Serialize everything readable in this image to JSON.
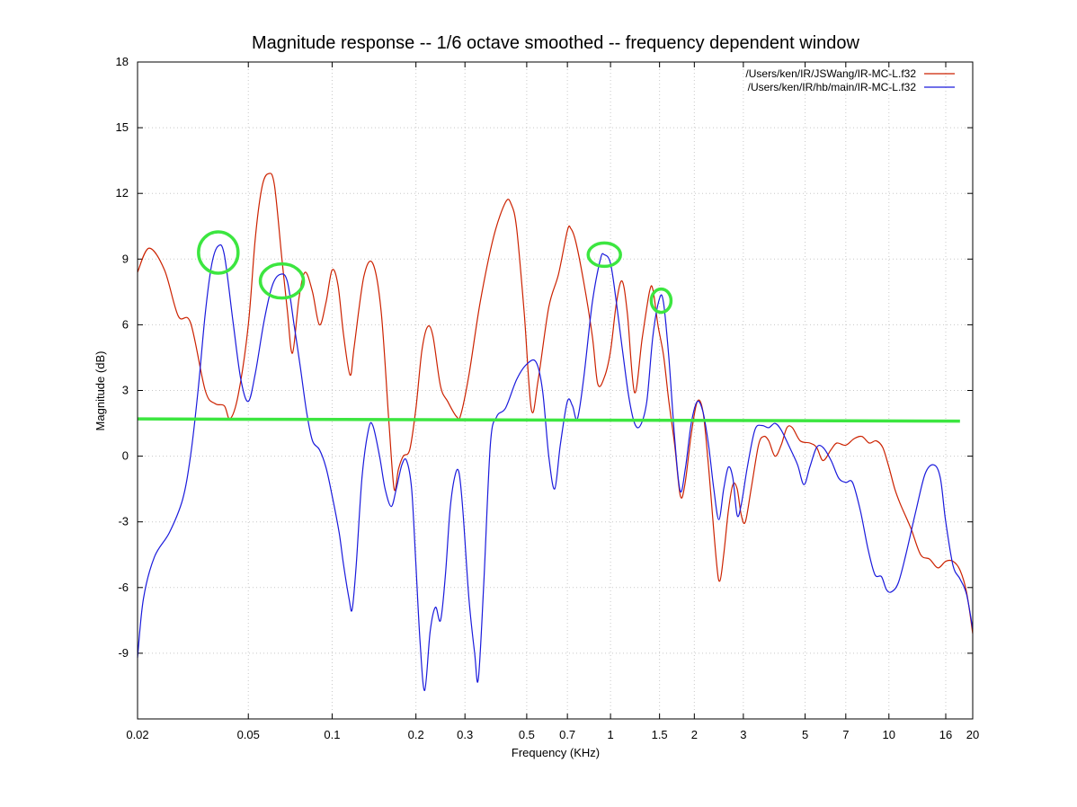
{
  "chart_data": {
    "type": "line",
    "title": "Magnitude response -- 1/6 octave smoothed -- frequency dependent window",
    "xlabel": "Frequency (KHz)",
    "ylabel": "Magnitude (dB)",
    "xscale": "log",
    "xlim": [
      0.02,
      20
    ],
    "ylim": [
      -12,
      18
    ],
    "x_ticks": [
      0.02,
      0.05,
      0.1,
      0.2,
      0.3,
      0.5,
      0.7,
      1,
      1.5,
      2,
      3,
      5,
      7,
      10,
      16,
      20
    ],
    "x_tick_labels": [
      "0.02",
      "0.05",
      "0.1",
      "0.2",
      "0.3",
      "0.5",
      "0.7",
      "1",
      "1.5",
      "2",
      "3",
      "5",
      "7",
      "10",
      "16",
      "20"
    ],
    "y_ticks": [
      -9,
      -6,
      -3,
      0,
      3,
      6,
      9,
      12,
      15,
      18
    ],
    "y_tick_labels": [
      "-9",
      "-6",
      "-3",
      "0",
      "3",
      "6",
      "9",
      "12",
      "15",
      "18"
    ],
    "grid": true,
    "legend_position": "top-right",
    "series": [
      {
        "name": "/Users/ken/IR/JSWang/IR-MC-L.f32",
        "color": "#cc2200",
        "points": [
          [
            0.02,
            8.4
          ],
          [
            0.022,
            9.5
          ],
          [
            0.025,
            8.5
          ],
          [
            0.028,
            6.4
          ],
          [
            0.031,
            6.1
          ],
          [
            0.035,
            3.0
          ],
          [
            0.038,
            2.4
          ],
          [
            0.041,
            2.3
          ],
          [
            0.043,
            1.7
          ],
          [
            0.046,
            2.8
          ],
          [
            0.05,
            6.0
          ],
          [
            0.053,
            10.0
          ],
          [
            0.056,
            12.3
          ],
          [
            0.059,
            12.9
          ],
          [
            0.062,
            12.4
          ],
          [
            0.066,
            9.0
          ],
          [
            0.069,
            6.7
          ],
          [
            0.072,
            4.7
          ],
          [
            0.076,
            7.2
          ],
          [
            0.08,
            8.4
          ],
          [
            0.085,
            7.5
          ],
          [
            0.09,
            6.0
          ],
          [
            0.095,
            7.0
          ],
          [
            0.1,
            8.5
          ],
          [
            0.105,
            7.8
          ],
          [
            0.11,
            5.5
          ],
          [
            0.116,
            3.7
          ],
          [
            0.12,
            5.0
          ],
          [
            0.13,
            8.2
          ],
          [
            0.14,
            8.8
          ],
          [
            0.15,
            6.6
          ],
          [
            0.16,
            1.5
          ],
          [
            0.167,
            -1.5
          ],
          [
            0.173,
            -0.6
          ],
          [
            0.18,
            0.0
          ],
          [
            0.19,
            0.3
          ],
          [
            0.2,
            2.2
          ],
          [
            0.21,
            4.8
          ],
          [
            0.22,
            5.9
          ],
          [
            0.23,
            5.5
          ],
          [
            0.245,
            3.2
          ],
          [
            0.26,
            2.5
          ],
          [
            0.28,
            1.8
          ],
          [
            0.29,
            1.9
          ],
          [
            0.31,
            3.7
          ],
          [
            0.34,
            7.0
          ],
          [
            0.38,
            10.0
          ],
          [
            0.42,
            11.6
          ],
          [
            0.44,
            11.5
          ],
          [
            0.46,
            10.4
          ],
          [
            0.49,
            6.5
          ],
          [
            0.52,
            2.1
          ],
          [
            0.55,
            3.5
          ],
          [
            0.6,
            6.8
          ],
          [
            0.65,
            8.3
          ],
          [
            0.7,
            10.3
          ],
          [
            0.72,
            10.4
          ],
          [
            0.75,
            9.8
          ],
          [
            0.8,
            8.0
          ],
          [
            0.86,
            5.5
          ],
          [
            0.9,
            3.3
          ],
          [
            0.95,
            3.6
          ],
          [
            1.0,
            4.8
          ],
          [
            1.05,
            7.0
          ],
          [
            1.1,
            8.0
          ],
          [
            1.15,
            6.5
          ],
          [
            1.22,
            2.9
          ],
          [
            1.3,
            5.4
          ],
          [
            1.38,
            7.5
          ],
          [
            1.42,
            7.6
          ],
          [
            1.48,
            6.0
          ],
          [
            1.55,
            4.6
          ],
          [
            1.62,
            2.5
          ],
          [
            1.7,
            0.5
          ],
          [
            1.78,
            -1.8
          ],
          [
            1.85,
            -1.3
          ],
          [
            1.95,
            1.0
          ],
          [
            2.05,
            2.5
          ],
          [
            2.15,
            2.0
          ],
          [
            2.25,
            -0.5
          ],
          [
            2.4,
            -4.8
          ],
          [
            2.47,
            -5.7
          ],
          [
            2.55,
            -4.5
          ],
          [
            2.65,
            -2.5
          ],
          [
            2.75,
            -1.3
          ],
          [
            2.85,
            -1.5
          ],
          [
            2.95,
            -2.7
          ],
          [
            3.05,
            -3.0
          ],
          [
            3.2,
            -1.5
          ],
          [
            3.4,
            0.5
          ],
          [
            3.55,
            0.9
          ],
          [
            3.7,
            0.7
          ],
          [
            3.9,
            0.0
          ],
          [
            4.1,
            0.5
          ],
          [
            4.3,
            1.3
          ],
          [
            4.5,
            1.3
          ],
          [
            4.8,
            0.7
          ],
          [
            5.2,
            0.6
          ],
          [
            5.5,
            0.4
          ],
          [
            5.8,
            -0.2
          ],
          [
            6.2,
            0.3
          ],
          [
            6.5,
            0.6
          ],
          [
            7.0,
            0.5
          ],
          [
            7.5,
            0.8
          ],
          [
            8.0,
            0.9
          ],
          [
            8.5,
            0.6
          ],
          [
            9.0,
            0.7
          ],
          [
            9.5,
            0.4
          ],
          [
            10.0,
            -0.5
          ],
          [
            10.5,
            -1.5
          ],
          [
            11.0,
            -2.2
          ],
          [
            12.0,
            -3.3
          ],
          [
            13.0,
            -4.5
          ],
          [
            14.0,
            -4.7
          ],
          [
            15.0,
            -5.1
          ],
          [
            16.0,
            -4.8
          ],
          [
            17.0,
            -4.8
          ],
          [
            18.0,
            -5.2
          ],
          [
            19.0,
            -6.2
          ],
          [
            20.0,
            -8.1
          ]
        ]
      },
      {
        "name": "/Users/ken/IR/hb/main/IR-MC-L.f32",
        "color": "#1a1adc",
        "points": [
          [
            0.02,
            -9.2
          ],
          [
            0.021,
            -6.5
          ],
          [
            0.023,
            -4.6
          ],
          [
            0.026,
            -3.5
          ],
          [
            0.029,
            -2.0
          ],
          [
            0.031,
            0.0
          ],
          [
            0.033,
            3.0
          ],
          [
            0.035,
            6.5
          ],
          [
            0.037,
            8.8
          ],
          [
            0.039,
            9.6
          ],
          [
            0.041,
            9.2
          ],
          [
            0.044,
            6.2
          ],
          [
            0.047,
            3.5
          ],
          [
            0.05,
            2.5
          ],
          [
            0.053,
            3.8
          ],
          [
            0.057,
            6.2
          ],
          [
            0.061,
            7.8
          ],
          [
            0.065,
            8.3
          ],
          [
            0.069,
            8.0
          ],
          [
            0.073,
            6.0
          ],
          [
            0.077,
            4.0
          ],
          [
            0.081,
            2.0
          ],
          [
            0.085,
            0.7
          ],
          [
            0.09,
            0.3
          ],
          [
            0.095,
            -0.5
          ],
          [
            0.1,
            -1.8
          ],
          [
            0.106,
            -3.5
          ],
          [
            0.11,
            -5.0
          ],
          [
            0.115,
            -6.5
          ],
          [
            0.118,
            -7.0
          ],
          [
            0.122,
            -5.0
          ],
          [
            0.128,
            -1.0
          ],
          [
            0.135,
            1.2
          ],
          [
            0.14,
            1.4
          ],
          [
            0.148,
            0.0
          ],
          [
            0.155,
            -1.5
          ],
          [
            0.163,
            -2.3
          ],
          [
            0.17,
            -1.5
          ],
          [
            0.178,
            -0.4
          ],
          [
            0.185,
            -0.2
          ],
          [
            0.193,
            -1.5
          ],
          [
            0.2,
            -5.0
          ],
          [
            0.207,
            -8.5
          ],
          [
            0.215,
            -10.7
          ],
          [
            0.225,
            -8.0
          ],
          [
            0.235,
            -6.9
          ],
          [
            0.245,
            -7.5
          ],
          [
            0.255,
            -5.5
          ],
          [
            0.265,
            -2.5
          ],
          [
            0.275,
            -1.0
          ],
          [
            0.285,
            -0.7
          ],
          [
            0.295,
            -2.5
          ],
          [
            0.31,
            -6.5
          ],
          [
            0.325,
            -9.0
          ],
          [
            0.335,
            -10.2
          ],
          [
            0.35,
            -6.0
          ],
          [
            0.37,
            0.5
          ],
          [
            0.39,
            1.8
          ],
          [
            0.42,
            2.2
          ],
          [
            0.46,
            3.5
          ],
          [
            0.5,
            4.2
          ],
          [
            0.54,
            4.3
          ],
          [
            0.57,
            3.0
          ],
          [
            0.6,
            0.0
          ],
          [
            0.63,
            -1.5
          ],
          [
            0.66,
            0.5
          ],
          [
            0.7,
            2.5
          ],
          [
            0.73,
            2.3
          ],
          [
            0.76,
            1.7
          ],
          [
            0.8,
            3.5
          ],
          [
            0.86,
            7.0
          ],
          [
            0.92,
            9.0
          ],
          [
            0.95,
            9.2
          ],
          [
            1.0,
            8.8
          ],
          [
            1.05,
            7.0
          ],
          [
            1.1,
            5.0
          ],
          [
            1.16,
            2.8
          ],
          [
            1.22,
            1.5
          ],
          [
            1.28,
            1.4
          ],
          [
            1.35,
            2.5
          ],
          [
            1.42,
            5.5
          ],
          [
            1.5,
            7.2
          ],
          [
            1.55,
            7.0
          ],
          [
            1.62,
            4.5
          ],
          [
            1.7,
            0.8
          ],
          [
            1.78,
            -1.6
          ],
          [
            1.86,
            -0.5
          ],
          [
            1.95,
            1.5
          ],
          [
            2.05,
            2.5
          ],
          [
            2.15,
            2.0
          ],
          [
            2.25,
            0.5
          ],
          [
            2.35,
            -1.5
          ],
          [
            2.45,
            -2.9
          ],
          [
            2.55,
            -1.5
          ],
          [
            2.65,
            -0.5
          ],
          [
            2.75,
            -1.0
          ],
          [
            2.85,
            -2.7
          ],
          [
            2.95,
            -2.2
          ],
          [
            3.1,
            -0.5
          ],
          [
            3.3,
            1.2
          ],
          [
            3.5,
            1.4
          ],
          [
            3.7,
            1.3
          ],
          [
            3.9,
            1.5
          ],
          [
            4.1,
            1.2
          ],
          [
            4.4,
            0.4
          ],
          [
            4.7,
            -0.4
          ],
          [
            4.95,
            -1.3
          ],
          [
            5.2,
            -0.5
          ],
          [
            5.5,
            0.4
          ],
          [
            5.8,
            0.4
          ],
          [
            6.2,
            -0.2
          ],
          [
            6.6,
            -1.0
          ],
          [
            7.0,
            -1.2
          ],
          [
            7.4,
            -1.2
          ],
          [
            7.9,
            -2.5
          ],
          [
            8.4,
            -4.2
          ],
          [
            8.9,
            -5.4
          ],
          [
            9.4,
            -5.5
          ],
          [
            9.8,
            -6.1
          ],
          [
            10.2,
            -6.2
          ],
          [
            10.8,
            -5.8
          ],
          [
            11.5,
            -4.5
          ],
          [
            12.5,
            -2.5
          ],
          [
            13.5,
            -0.8
          ],
          [
            14.5,
            -0.4
          ],
          [
            15.3,
            -1.0
          ],
          [
            16.0,
            -3.0
          ],
          [
            17.0,
            -5.0
          ],
          [
            18.0,
            -5.6
          ],
          [
            19.0,
            -6.3
          ],
          [
            20.0,
            -7.9
          ]
        ]
      }
    ],
    "annotations": {
      "reference_line": {
        "color": "#3ce640",
        "from": [
          0.02,
          1.7
        ],
        "to": [
          18.0,
          1.6
        ]
      },
      "circles": [
        {
          "color": "#3ce640",
          "x": 0.039,
          "y": 9.3
        },
        {
          "color": "#3ce640",
          "x": 0.066,
          "y": 8.0
        },
        {
          "color": "#3ce640",
          "x": 0.95,
          "y": 9.2
        },
        {
          "color": "#3ce640",
          "x": 1.52,
          "y": 7.1
        }
      ]
    }
  }
}
